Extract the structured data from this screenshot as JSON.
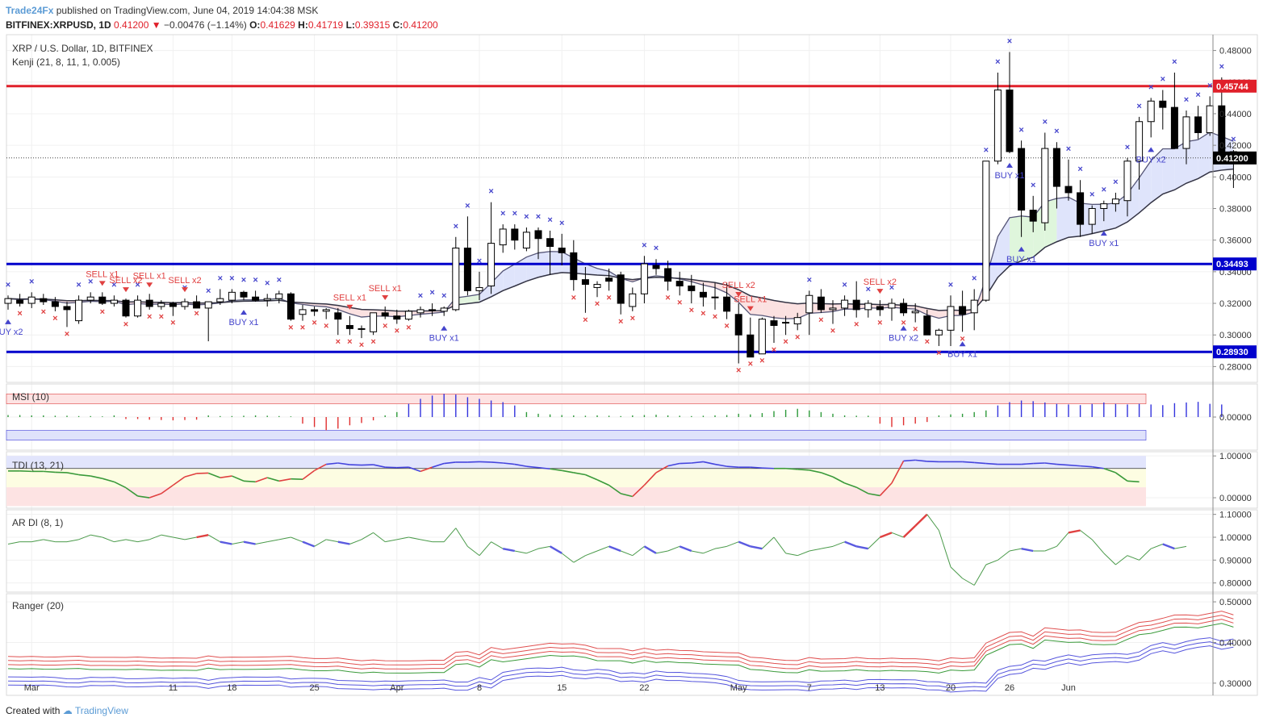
{
  "header": {
    "publisher": "Trade24Fx",
    "published_text": "published on TradingView.com, June 04, 2019 14:04:38 MSK",
    "symbol": "BITFINEX:XRPUSD, 1D",
    "last": "0.41200",
    "change": "−0.00476 (−1.14%)",
    "o_label": "O:",
    "o": "0.41629",
    "h_label": "H:",
    "h": "0.41719",
    "l_label": "L:",
    "l": "0.39315",
    "c_label": "C:",
    "c": "0.41200"
  },
  "legend": {
    "instrument": "XRP / U.S. Dollar, 1D, BITFINEX",
    "indicator": "Kenji (21, 8, 11, 1, 0.005)"
  },
  "panes": {
    "msi": "MSI (10)",
    "tdi": "TDI (13, 21)",
    "ardi": "AR DI (8, 1)",
    "ranger": "Ranger (20)"
  },
  "footer": {
    "created_with": "Created with",
    "brand": "TradingView"
  },
  "colors": {
    "up_candle": "#ffffff",
    "down_candle": "#000000",
    "resistance": "#e0202a",
    "support": "#0000cc",
    "buy": "#4444cc",
    "sell": "#e04040"
  },
  "chart_data": [
    {
      "type": "candlestick",
      "title": "XRP / U.S. Dollar, 1D, BITFINEX",
      "ylim": [
        0.27,
        0.49
      ],
      "y_ticks": [
        "0.48000",
        "0.46000",
        "0.44000",
        "0.42000",
        "0.40000",
        "0.38000",
        "0.36000",
        "0.34000",
        "0.32000",
        "0.30000",
        "0.28000"
      ],
      "x_ticks": [
        "Mar",
        "11",
        "18",
        "25",
        "Apr",
        "8",
        "15",
        "22",
        "May",
        "7",
        "13",
        "20",
        "26",
        "Jun"
      ],
      "last_price_label": "0.41200",
      "levels": [
        {
          "label": "0.45744",
          "value": 0.45744,
          "color": "#e0202a"
        },
        {
          "label": "0.34493",
          "value": 0.34493,
          "color": "#0000cc"
        },
        {
          "label": "0.28930",
          "value": 0.2893,
          "color": "#0000cc"
        }
      ],
      "ohlc": [
        [
          0.32,
          0.325,
          0.316,
          0.323
        ],
        [
          0.322,
          0.326,
          0.318,
          0.32
        ],
        [
          0.32,
          0.327,
          0.317,
          0.324
        ],
        [
          0.323,
          0.326,
          0.319,
          0.321
        ],
        [
          0.321,
          0.324,
          0.315,
          0.318
        ],
        [
          0.318,
          0.321,
          0.305,
          0.316
        ],
        [
          0.309,
          0.325,
          0.307,
          0.322
        ],
        [
          0.322,
          0.327,
          0.32,
          0.324
        ],
        [
          0.324,
          0.327,
          0.319,
          0.32
        ],
        [
          0.32,
          0.325,
          0.318,
          0.322
        ],
        [
          0.322,
          0.323,
          0.311,
          0.312
        ],
        [
          0.312,
          0.325,
          0.311,
          0.322
        ],
        [
          0.322,
          0.326,
          0.316,
          0.318
        ],
        [
          0.318,
          0.322,
          0.316,
          0.32
        ],
        [
          0.32,
          0.321,
          0.312,
          0.318
        ],
        [
          0.318,
          0.323,
          0.316,
          0.321
        ],
        [
          0.321,
          0.325,
          0.318,
          0.317
        ],
        [
          0.317,
          0.321,
          0.296,
          0.321
        ],
        [
          0.321,
          0.329,
          0.319,
          0.323
        ],
        [
          0.322,
          0.329,
          0.32,
          0.327
        ],
        [
          0.327,
          0.328,
          0.322,
          0.324
        ],
        [
          0.324,
          0.328,
          0.321,
          0.322
        ],
        [
          0.322,
          0.326,
          0.318,
          0.323
        ],
        [
          0.323,
          0.328,
          0.32,
          0.326
        ],
        [
          0.326,
          0.327,
          0.309,
          0.31
        ],
        [
          0.313,
          0.319,
          0.309,
          0.316
        ],
        [
          0.316,
          0.318,
          0.312,
          0.315
        ],
        [
          0.315,
          0.317,
          0.31,
          0.316
        ],
        [
          0.314,
          0.317,
          0.3,
          0.31
        ],
        [
          0.306,
          0.312,
          0.3,
          0.304
        ],
        [
          0.304,
          0.306,
          0.298,
          0.304
        ],
        [
          0.302,
          0.314,
          0.3,
          0.314
        ],
        [
          0.314,
          0.318,
          0.31,
          0.312
        ],
        [
          0.312,
          0.316,
          0.307,
          0.31
        ],
        [
          0.31,
          0.316,
          0.309,
          0.315
        ],
        [
          0.314,
          0.318,
          0.311,
          0.316
        ],
        [
          0.316,
          0.32,
          0.312,
          0.316
        ],
        [
          0.315,
          0.318,
          0.312,
          0.317
        ],
        [
          0.316,
          0.362,
          0.315,
          0.355
        ],
        [
          0.355,
          0.375,
          0.325,
          0.328
        ],
        [
          0.328,
          0.34,
          0.322,
          0.33
        ],
        [
          0.331,
          0.384,
          0.326,
          0.358
        ],
        [
          0.357,
          0.37,
          0.352,
          0.367
        ],
        [
          0.367,
          0.37,
          0.354,
          0.36
        ],
        [
          0.355,
          0.368,
          0.353,
          0.365
        ],
        [
          0.366,
          0.368,
          0.348,
          0.361
        ],
        [
          0.361,
          0.366,
          0.338,
          0.356
        ],
        [
          0.355,
          0.364,
          0.344,
          0.352
        ],
        [
          0.352,
          0.36,
          0.328,
          0.335
        ],
        [
          0.335,
          0.343,
          0.314,
          0.332
        ],
        [
          0.33,
          0.334,
          0.324,
          0.332
        ],
        [
          0.336,
          0.342,
          0.328,
          0.334
        ],
        [
          0.338,
          0.34,
          0.313,
          0.32
        ],
        [
          0.318,
          0.33,
          0.315,
          0.326
        ],
        [
          0.326,
          0.35,
          0.32,
          0.345
        ],
        [
          0.344,
          0.348,
          0.338,
          0.342
        ],
        [
          0.342,
          0.347,
          0.328,
          0.334
        ],
        [
          0.334,
          0.34,
          0.325,
          0.331
        ],
        [
          0.331,
          0.338,
          0.32,
          0.328
        ],
        [
          0.327,
          0.333,
          0.318,
          0.324
        ],
        [
          0.324,
          0.333,
          0.316,
          0.324
        ],
        [
          0.324,
          0.333,
          0.31,
          0.315
        ],
        [
          0.313,
          0.32,
          0.282,
          0.3
        ],
        [
          0.3,
          0.311,
          0.286,
          0.286
        ],
        [
          0.288,
          0.311,
          0.288,
          0.31
        ],
        [
          0.309,
          0.312,
          0.295,
          0.306
        ],
        [
          0.308,
          0.312,
          0.3,
          0.308
        ],
        [
          0.307,
          0.314,
          0.303,
          0.311
        ],
        [
          0.314,
          0.328,
          0.3,
          0.325
        ],
        [
          0.324,
          0.329,
          0.314,
          0.316
        ],
        [
          0.316,
          0.322,
          0.307,
          0.317
        ],
        [
          0.317,
          0.325,
          0.312,
          0.322
        ],
        [
          0.322,
          0.334,
          0.311,
          0.316
        ],
        [
          0.316,
          0.322,
          0.311,
          0.32
        ],
        [
          0.318,
          0.322,
          0.312,
          0.316
        ],
        [
          0.317,
          0.323,
          0.309,
          0.32
        ],
        [
          0.32,
          0.323,
          0.312,
          0.314
        ],
        [
          0.314,
          0.32,
          0.308,
          0.315
        ],
        [
          0.312,
          0.316,
          0.3,
          0.3
        ],
        [
          0.3,
          0.304,
          0.293,
          0.303
        ],
        [
          0.303,
          0.325,
          0.293,
          0.318
        ],
        [
          0.318,
          0.328,
          0.302,
          0.313
        ],
        [
          0.314,
          0.329,
          0.303,
          0.322
        ],
        [
          0.322,
          0.41,
          0.321,
          0.41
        ],
        [
          0.41,
          0.466,
          0.408,
          0.455
        ],
        [
          0.455,
          0.479,
          0.415,
          0.416
        ],
        [
          0.418,
          0.423,
          0.362,
          0.379
        ],
        [
          0.379,
          0.388,
          0.365,
          0.372
        ],
        [
          0.371,
          0.428,
          0.366,
          0.418
        ],
        [
          0.418,
          0.422,
          0.38,
          0.394
        ],
        [
          0.394,
          0.411,
          0.385,
          0.39
        ],
        [
          0.39,
          0.398,
          0.362,
          0.37
        ],
        [
          0.37,
          0.382,
          0.364,
          0.38
        ],
        [
          0.38,
          0.385,
          0.372,
          0.383
        ],
        [
          0.383,
          0.39,
          0.378,
          0.386
        ],
        [
          0.385,
          0.412,
          0.375,
          0.41
        ],
        [
          0.41,
          0.438,
          0.392,
          0.435
        ],
        [
          0.435,
          0.45,
          0.425,
          0.448
        ],
        [
          0.448,
          0.455,
          0.43,
          0.444
        ],
        [
          0.444,
          0.466,
          0.418,
          0.418
        ],
        [
          0.418,
          0.442,
          0.408,
          0.438
        ],
        [
          0.438,
          0.445,
          0.424,
          0.428
        ],
        [
          0.428,
          0.451,
          0.426,
          0.445
        ],
        [
          0.445,
          0.463,
          0.415,
          0.416
        ],
        [
          0.416,
          0.417,
          0.393,
          0.412
        ]
      ],
      "signals": [
        {
          "label": "BUY x2",
          "bar": 0,
          "type": "buy"
        },
        {
          "label": "SELL x1",
          "bar": 8,
          "type": "sell"
        },
        {
          "label": "SELL x2",
          "bar": 10,
          "type": "sell"
        },
        {
          "label": "SELL x1",
          "bar": 12,
          "type": "sell"
        },
        {
          "label": "SELL x2",
          "bar": 15,
          "type": "sell"
        },
        {
          "label": "BUY x1",
          "bar": 20,
          "type": "buy"
        },
        {
          "label": "SELL x1",
          "bar": 29,
          "type": "sell"
        },
        {
          "label": "SELL x1",
          "bar": 32,
          "type": "sell"
        },
        {
          "label": "BUY x1",
          "bar": 37,
          "type": "buy"
        },
        {
          "label": "SELL x2",
          "bar": 62,
          "type": "sell"
        },
        {
          "label": "SELL x1",
          "bar": 63,
          "type": "sell"
        },
        {
          "label": "SELL x2",
          "bar": 74,
          "type": "sell"
        },
        {
          "label": "BUY x2",
          "bar": 76,
          "type": "buy"
        },
        {
          "label": "BUY x1",
          "bar": 81,
          "type": "buy"
        },
        {
          "label": "BUY x1",
          "bar": 85,
          "type": "buy"
        },
        {
          "label": "BUY x1",
          "bar": 86,
          "type": "buy"
        },
        {
          "label": "BUY x1",
          "bar": 93,
          "type": "buy"
        },
        {
          "label": "BUY x2",
          "bar": 97,
          "type": "buy"
        }
      ]
    },
    {
      "type": "bar",
      "title": "MSI (10)",
      "ylim": [
        -0.1,
        0.1
      ],
      "y_ticks": [
        "0.00000"
      ],
      "values": [
        0.006,
        0.006,
        0.005,
        0.005,
        0.004,
        0.004,
        0.003,
        0.003,
        0.002,
        0.005,
        -0.006,
        -0.006,
        -0.008,
        -0.009,
        -0.01,
        -0.009,
        -0.008,
        0.005,
        0.003,
        0.003,
        0.004,
        0.005,
        0.004,
        0.003,
        0.002,
        -0.02,
        -0.03,
        -0.04,
        -0.035,
        -0.025,
        -0.018,
        -0.01,
        0.005,
        0.015,
        0.04,
        0.055,
        0.065,
        0.07,
        0.068,
        0.06,
        0.055,
        0.05,
        0.045,
        0.035,
        0.015,
        0.01,
        0.008,
        0.006,
        0.005,
        0.004,
        0.005,
        0.004,
        0.003,
        0.005,
        0.006,
        0.007,
        0.005,
        0.004,
        0.003,
        0.004,
        0.005,
        0.006,
        0.01,
        0.008,
        0.012,
        0.018,
        0.022,
        0.025,
        0.02,
        0.015,
        0.01,
        0.005,
        0.004,
        0.004,
        -0.02,
        -0.03,
        -0.025,
        -0.02,
        -0.015,
        0.005,
        0.008,
        0.01,
        0.015,
        0.02,
        0.035,
        0.045,
        0.05,
        0.048,
        0.044,
        0.04,
        0.038,
        0.036,
        0.04,
        0.044,
        0.04,
        0.038,
        0.04,
        0.038,
        0.036,
        0.042,
        0.044,
        0.046,
        0.04,
        0.038
      ],
      "upper_band": [
        0.04,
        0.07
      ],
      "lower_band": [
        -0.07,
        -0.04
      ]
    },
    {
      "type": "line",
      "title": "TDI (13, 21)",
      "ylim": [
        -0.25,
        1.1
      ],
      "y_ticks": [
        "1.00000",
        "0.00000"
      ],
      "series": [
        {
          "values": [
            0.64,
            0.64,
            0.63,
            0.63,
            0.61,
            0.6,
            0.55,
            0.52,
            0.46,
            0.38,
            0.24,
            0.04,
            0.0,
            0.1,
            0.3,
            0.5,
            0.58,
            0.59,
            0.48,
            0.52,
            0.4,
            0.38,
            0.48,
            0.4,
            0.45,
            0.44,
            0.65,
            0.8,
            0.83,
            0.79,
            0.78,
            0.79,
            0.73,
            0.72,
            0.73,
            0.63,
            0.73,
            0.82,
            0.85,
            0.85,
            0.86,
            0.85,
            0.83,
            0.8,
            0.75,
            0.72,
            0.69,
            0.65,
            0.6,
            0.55,
            0.43,
            0.3,
            0.1,
            0.03,
            0.3,
            0.6,
            0.76,
            0.82,
            0.83,
            0.86,
            0.8,
            0.75,
            0.73,
            0.73,
            0.71,
            0.7,
            0.7,
            0.68,
            0.66,
            0.6,
            0.5,
            0.35,
            0.25,
            0.1,
            0.05,
            0.35,
            0.88,
            0.9,
            0.87,
            0.86,
            0.86,
            0.86,
            0.84,
            0.82,
            0.8,
            0.8,
            0.8,
            0.82,
            0.83,
            0.8,
            0.78,
            0.76,
            0.74,
            0.7,
            0.6,
            0.4,
            0.38
          ]
        }
      ]
    },
    {
      "type": "line",
      "title": "AR DI (8, 1)",
      "ylim": [
        0.76,
        1.12
      ],
      "y_ticks": [
        "1.10000",
        "1.00000",
        "0.90000",
        "0.80000"
      ],
      "series": [
        {
          "values": [
            0.97,
            0.98,
            0.98,
            0.99,
            0.98,
            0.98,
            0.99,
            1.01,
            1.0,
            0.98,
            0.99,
            0.98,
            0.99,
            1.01,
            1.0,
            0.99,
            1.0,
            1.01,
            0.98,
            0.97,
            0.98,
            0.97,
            0.98,
            0.99,
            1.0,
            0.98,
            0.96,
            0.99,
            0.98,
            0.97,
            0.99,
            1.02,
            0.98,
            0.99,
            1.0,
            0.99,
            0.98,
            0.98,
            1.04,
            0.96,
            0.92,
            0.98,
            0.95,
            0.94,
            0.93,
            0.95,
            0.96,
            0.93,
            0.89,
            0.92,
            0.94,
            0.96,
            0.94,
            0.92,
            0.96,
            0.93,
            0.94,
            0.96,
            0.94,
            0.93,
            0.95,
            0.96,
            0.98,
            0.96,
            0.95,
            1.0,
            0.93,
            0.92,
            0.94,
            0.95,
            0.96,
            0.98,
            0.96,
            0.95,
            1.0,
            1.02,
            1.0,
            1.05,
            1.1,
            1.03,
            0.87,
            0.82,
            0.79,
            0.88,
            0.9,
            0.94,
            0.95,
            0.94,
            0.94,
            0.96,
            1.02,
            1.03,
            0.99,
            0.93,
            0.88,
            0.92,
            0.9,
            0.95,
            0.97,
            0.95,
            0.96
          ]
        }
      ]
    },
    {
      "type": "line",
      "title": "Ranger (20)",
      "ylim": [
        0.27,
        0.52
      ],
      "y_ticks": [
        "0.50000",
        "0.40000",
        "0.30000"
      ]
    }
  ]
}
